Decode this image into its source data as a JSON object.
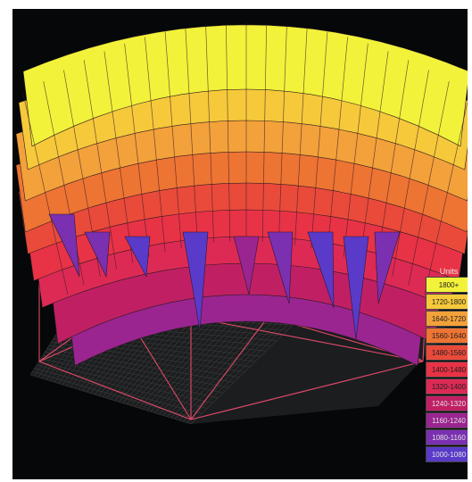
{
  "chart_data": {
    "type": "surface3d",
    "title": "",
    "legend": {
      "title": "Units",
      "placement": "right",
      "entries": [
        {
          "label": "1800+",
          "color": "#f2f23a"
        },
        {
          "label": "1720-1800",
          "color": "#f5c93a"
        },
        {
          "label": "1640-1720",
          "color": "#f3a13a"
        },
        {
          "label": "1560-1640",
          "color": "#ee7433"
        },
        {
          "label": "1480-1560",
          "color": "#ea4a3a"
        },
        {
          "label": "1400-1480",
          "color": "#e83246"
        },
        {
          "label": "1320-1400",
          "color": "#dd2a55"
        },
        {
          "label": "1240-1320",
          "color": "#c02063"
        },
        {
          "label": "1160-1240",
          "color": "#9a2590"
        },
        {
          "label": "1080-1160",
          "color": "#7a30b0"
        },
        {
          "label": "1000-1080",
          "color": "#5a3ac8"
        }
      ]
    },
    "grid": true,
    "value_range": [
      1000,
      1800
    ],
    "peak_value": 1800,
    "min_value": 1000
  }
}
